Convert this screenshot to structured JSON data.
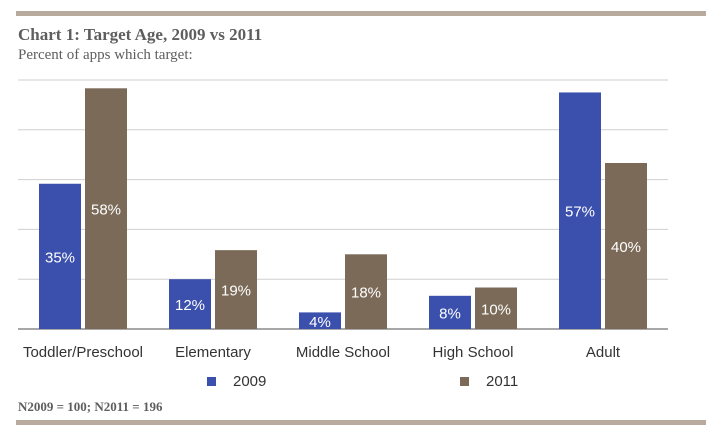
{
  "header": {
    "title": "Chart 1: Target Age, 2009 vs 2011",
    "subtitle": "Percent of apps which target:"
  },
  "footnote": "N2009 = 100; N2011 = 196",
  "chart_data": {
    "type": "bar",
    "title": "Chart 1: Target Age, 2009 vs 2011",
    "subtitle": "Percent of apps which target:",
    "categories": [
      "Toddler/Preschool",
      "Elementary",
      "Middle School",
      "High School",
      "Adult"
    ],
    "series": [
      {
        "name": "2009",
        "color": "#3b4fad",
        "values": [
          35,
          12,
          4,
          8,
          57
        ],
        "labels": [
          "35%",
          "12%",
          "4%",
          "8%",
          "57%"
        ]
      },
      {
        "name": "2011",
        "color": "#7b6a58",
        "values": [
          58,
          19,
          18,
          10,
          40
        ],
        "labels": [
          "58%",
          "19%",
          "18%",
          "10%",
          "40%"
        ]
      }
    ],
    "ylim": [
      0,
      60
    ],
    "grid": true,
    "legend": "bottom"
  }
}
